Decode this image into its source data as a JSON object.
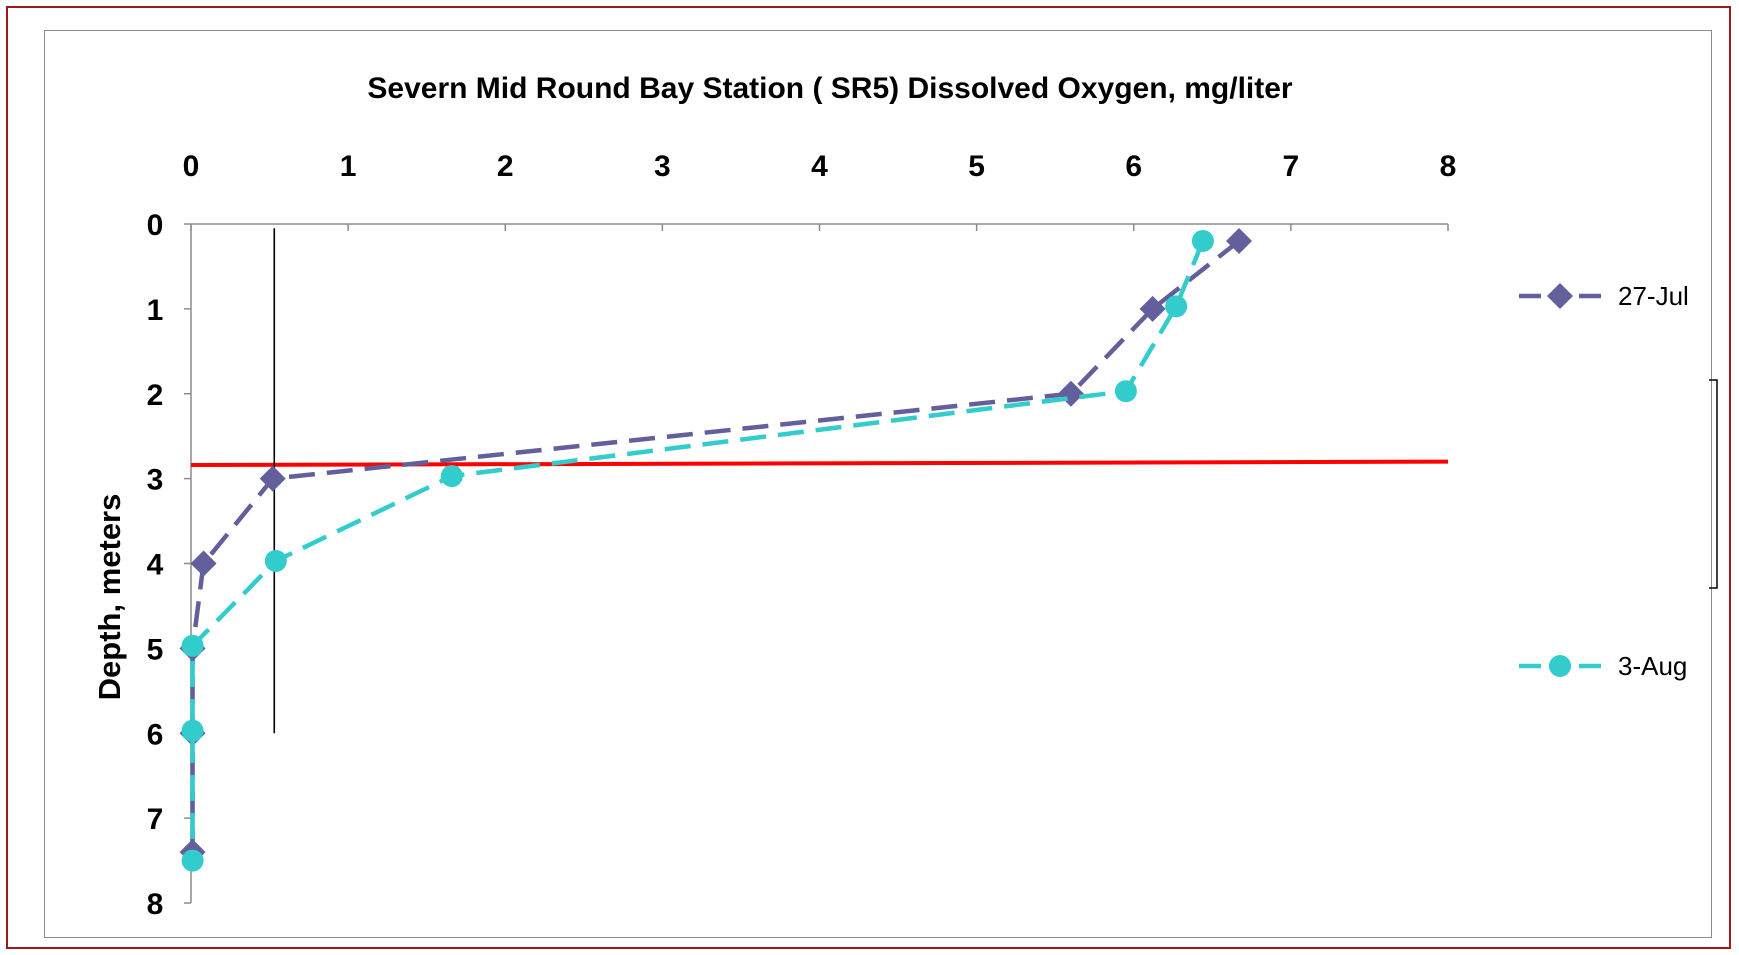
{
  "chart_data": {
    "type": "line",
    "title": "Severn Mid Round Bay Station ( SR5)     Dissolved Oxygen, mg/liter",
    "xlabel": "",
    "ylabel": "Depth, meters",
    "x_axis_position": "top",
    "y_axis_inverted": true,
    "xlim": [
      0,
      8
    ],
    "ylim": [
      0,
      8
    ],
    "x_ticks": [
      "0",
      "1",
      "2",
      "3",
      "4",
      "5",
      "6",
      "7",
      "8"
    ],
    "y_ticks": [
      "0",
      "1",
      "2",
      "3",
      "4",
      "5",
      "6",
      "7",
      "8"
    ],
    "grid": false,
    "legend_position": "right",
    "series": [
      {
        "name": "27-Jul",
        "color": "#635f9c",
        "marker": "diamond",
        "line_style": "dashed",
        "points": [
          {
            "do": 6.67,
            "depth": 0.2
          },
          {
            "do": 6.12,
            "depth": 1.0
          },
          {
            "do": 5.6,
            "depth": 2.0
          },
          {
            "do": 0.52,
            "depth": 3.0
          },
          {
            "do": 0.08,
            "depth": 4.0
          },
          {
            "do": 0.01,
            "depth": 5.0
          },
          {
            "do": 0.01,
            "depth": 6.0
          },
          {
            "do": 0.01,
            "depth": 7.4
          }
        ]
      },
      {
        "name": "3-Aug",
        "color": "#33cccc",
        "marker": "circle",
        "line_style": "dashed",
        "points": [
          {
            "do": 6.44,
            "depth": 0.2
          },
          {
            "do": 6.27,
            "depth": 0.97
          },
          {
            "do": 5.95,
            "depth": 1.97
          },
          {
            "do": 1.66,
            "depth": 2.97
          },
          {
            "do": 0.54,
            "depth": 3.97
          },
          {
            "do": 0.01,
            "depth": 4.97
          },
          {
            "do": 0.01,
            "depth": 5.97
          },
          {
            "do": 0.01,
            "depth": 7.5
          }
        ]
      }
    ],
    "reference_lines": [
      {
        "kind": "pycnocline",
        "color": "#ff0000",
        "from": {
          "do": 0,
          "depth": 2.84
        },
        "to": {
          "do": 8,
          "depth": 2.8
        }
      },
      {
        "kind": "vertical",
        "color": "#000000",
        "from": {
          "do": 0.53,
          "depth": 0.05
        },
        "to": {
          "do": 0.53,
          "depth": 6.0
        }
      }
    ]
  }
}
